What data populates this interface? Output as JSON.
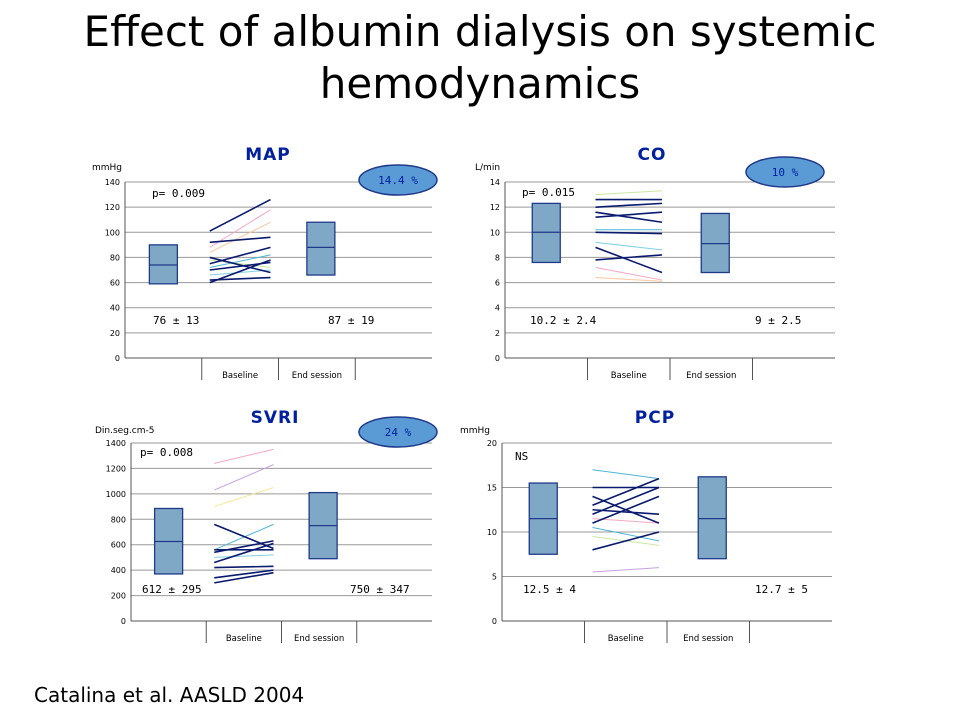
{
  "slide": {
    "title_line1": "Effect of albumin dialysis on systemic",
    "title_line2": "hemodynamics",
    "citation": "Catalina et al. AASLD 2004"
  },
  "colors": {
    "box_fill": "#7fa8c6",
    "box_stroke": "#1f3a8a",
    "bubble_fill": "#5b9bd5",
    "bubble_text": "#00209f",
    "title_color": "#00209f",
    "grid": "#999999",
    "dark_line": "#0a1a6e"
  },
  "chart_data": [
    {
      "id": "map",
      "type": "line",
      "title": "MAP",
      "ylabel": "mmHg",
      "ylim": [
        0,
        140
      ],
      "yticks": [
        "0",
        "20",
        "40",
        "60",
        "80",
        "100",
        "120",
        "140"
      ],
      "categories": [
        "Baseline",
        "End session"
      ],
      "pvalue": "p= 0.009",
      "change": "14.4 %",
      "stat_left": "76 ± 13",
      "stat_right": "87 ± 19",
      "box_left": {
        "min": 59,
        "median": 74,
        "max": 90
      },
      "box_right": {
        "min": 66,
        "median": 88,
        "max": 108
      },
      "series": [
        {
          "from": 101,
          "to": 126,
          "dark": true,
          "color": "#0a1a6e"
        },
        {
          "from": 92,
          "to": 96,
          "dark": true,
          "color": "#0a1a6e"
        },
        {
          "from": 75,
          "to": 88,
          "dark": true,
          "color": "#0a1a6e"
        },
        {
          "from": 80,
          "to": 68,
          "dark": true,
          "color": "#0a1a6e"
        },
        {
          "from": 70,
          "to": 76,
          "dark": true,
          "color": "#0a1a6e"
        },
        {
          "from": 62,
          "to": 64,
          "dark": true,
          "color": "#0a1a6e"
        },
        {
          "from": 60,
          "to": 78,
          "dark": true,
          "color": "#0a1a6e"
        },
        {
          "from": 88,
          "to": 118,
          "dark": false,
          "color": "#f4a6c0"
        },
        {
          "from": 84,
          "to": 108,
          "dark": false,
          "color": "#f9c89b"
        },
        {
          "from": 72,
          "to": 82,
          "dark": false,
          "color": "#4ab5d8"
        },
        {
          "from": 66,
          "to": 70,
          "dark": false,
          "color": "#7fd1e0"
        },
        {
          "from": 78,
          "to": 72,
          "dark": false,
          "color": "#c9e7a0"
        }
      ]
    },
    {
      "id": "co",
      "type": "line",
      "title": "CO",
      "ylabel": "L/min",
      "ylim": [
        0,
        14
      ],
      "yticks": [
        "0",
        "2",
        "4",
        "6",
        "8",
        "10",
        "12",
        "14"
      ],
      "categories": [
        "Baseline",
        "End session"
      ],
      "pvalue": "p= 0.015",
      "change": "10 %",
      "stat_left": "10.2 ± 2.4",
      "stat_right": "9 ± 2.5",
      "box_left": {
        "min": 7.6,
        "median": 10,
        "max": 12.3
      },
      "box_right": {
        "min": 6.8,
        "median": 9.1,
        "max": 11.5
      },
      "series": [
        {
          "from": 12.6,
          "to": 12.6,
          "dark": true,
          "color": "#0a1a6e"
        },
        {
          "from": 12.0,
          "to": 12.3,
          "dark": true,
          "color": "#0a1a6e"
        },
        {
          "from": 11.6,
          "to": 10.8,
          "dark": true,
          "color": "#0a1a6e"
        },
        {
          "from": 11.2,
          "to": 11.6,
          "dark": true,
          "color": "#0a1a6e"
        },
        {
          "from": 10.0,
          "to": 9.9,
          "dark": true,
          "color": "#0a1a6e"
        },
        {
          "from": 8.8,
          "to": 6.8,
          "dark": true,
          "color": "#0a1a6e"
        },
        {
          "from": 7.8,
          "to": 8.2,
          "dark": true,
          "color": "#0a1a6e"
        },
        {
          "from": 13.0,
          "to": 13.3,
          "dark": false,
          "color": "#c9e7a0"
        },
        {
          "from": 10.2,
          "to": 10.2,
          "dark": false,
          "color": "#4ab5d8"
        },
        {
          "from": 7.2,
          "to": 6.2,
          "dark": false,
          "color": "#f4a6c0"
        },
        {
          "from": 6.4,
          "to": 6.1,
          "dark": false,
          "color": "#f9c89b"
        },
        {
          "from": 9.2,
          "to": 8.6,
          "dark": false,
          "color": "#7fd1e0"
        }
      ]
    },
    {
      "id": "svri",
      "type": "line",
      "title": "SVRI",
      "ylabel": "Din.seg.cm-5",
      "ylim": [
        0,
        1400
      ],
      "yticks": [
        "0",
        "200",
        "400",
        "600",
        "800",
        "1000",
        "1200",
        "1400"
      ],
      "categories": [
        "Baseline",
        "End session"
      ],
      "pvalue": "p= 0.008",
      "change": "24 %",
      "stat_left": "612 ± 295",
      "stat_right": "750 ± 347",
      "box_left": {
        "min": 370,
        "median": 625,
        "max": 885
      },
      "box_right": {
        "min": 490,
        "median": 750,
        "max": 1010
      },
      "series": [
        {
          "from": 760,
          "to": 570,
          "dark": true,
          "color": "#0a1a6e"
        },
        {
          "from": 560,
          "to": 560,
          "dark": true,
          "color": "#0a1a6e"
        },
        {
          "from": 540,
          "to": 630,
          "dark": true,
          "color": "#0a1a6e"
        },
        {
          "from": 460,
          "to": 610,
          "dark": true,
          "color": "#0a1a6e"
        },
        {
          "from": 420,
          "to": 430,
          "dark": true,
          "color": "#0a1a6e"
        },
        {
          "from": 300,
          "to": 380,
          "dark": true,
          "color": "#0a1a6e"
        },
        {
          "from": 340,
          "to": 400,
          "dark": true,
          "color": "#0a1a6e"
        },
        {
          "from": 1240,
          "to": 1350,
          "dark": false,
          "color": "#f4a6c0"
        },
        {
          "from": 1030,
          "to": 1230,
          "dark": false,
          "color": "#c7a0e0"
        },
        {
          "from": 900,
          "to": 1050,
          "dark": false,
          "color": "#f9e79b"
        },
        {
          "from": 560,
          "to": 760,
          "dark": false,
          "color": "#4ab5d8"
        },
        {
          "from": 500,
          "to": 520,
          "dark": false,
          "color": "#7fd1e0"
        }
      ]
    },
    {
      "id": "pcp",
      "type": "line",
      "title": "PCP",
      "ylabel": "mmHg",
      "ylim": [
        0,
        20
      ],
      "yticks": [
        "0",
        "5",
        "10",
        "15",
        "20"
      ],
      "categories": [
        "Baseline",
        "End session"
      ],
      "pvalue": "NS",
      "change": "",
      "stat_left": "12.5 ± 4",
      "stat_right": "12.7 ± 5",
      "box_left": {
        "min": 7.5,
        "median": 11.5,
        "max": 15.5
      },
      "box_right": {
        "min": 7.0,
        "median": 11.5,
        "max": 16.2
      },
      "series": [
        {
          "from": 15.0,
          "to": 15.0,
          "dark": true,
          "color": "#0a1a6e"
        },
        {
          "from": 13.0,
          "to": 16.0,
          "dark": true,
          "color": "#0a1a6e"
        },
        {
          "from": 12.0,
          "to": 15.0,
          "dark": true,
          "color": "#0a1a6e"
        },
        {
          "from": 14.0,
          "to": 11.0,
          "dark": true,
          "color": "#0a1a6e"
        },
        {
          "from": 11.0,
          "to": 14.0,
          "dark": true,
          "color": "#0a1a6e"
        },
        {
          "from": 12.5,
          "to": 12.0,
          "dark": true,
          "color": "#0a1a6e"
        },
        {
          "from": 8.0,
          "to": 10.0,
          "dark": true,
          "color": "#0a1a6e"
        },
        {
          "from": 17.0,
          "to": 16.0,
          "dark": false,
          "color": "#4ab5d8"
        },
        {
          "from": 5.5,
          "to": 6.0,
          "dark": false,
          "color": "#c7a0e0"
        },
        {
          "from": 10.5,
          "to": 9.0,
          "dark": false,
          "color": "#4ab5d8"
        },
        {
          "from": 9.5,
          "to": 8.5,
          "dark": false,
          "color": "#c9e7a0"
        },
        {
          "from": 11.5,
          "to": 11.0,
          "dark": false,
          "color": "#f4a6c0"
        }
      ]
    }
  ]
}
